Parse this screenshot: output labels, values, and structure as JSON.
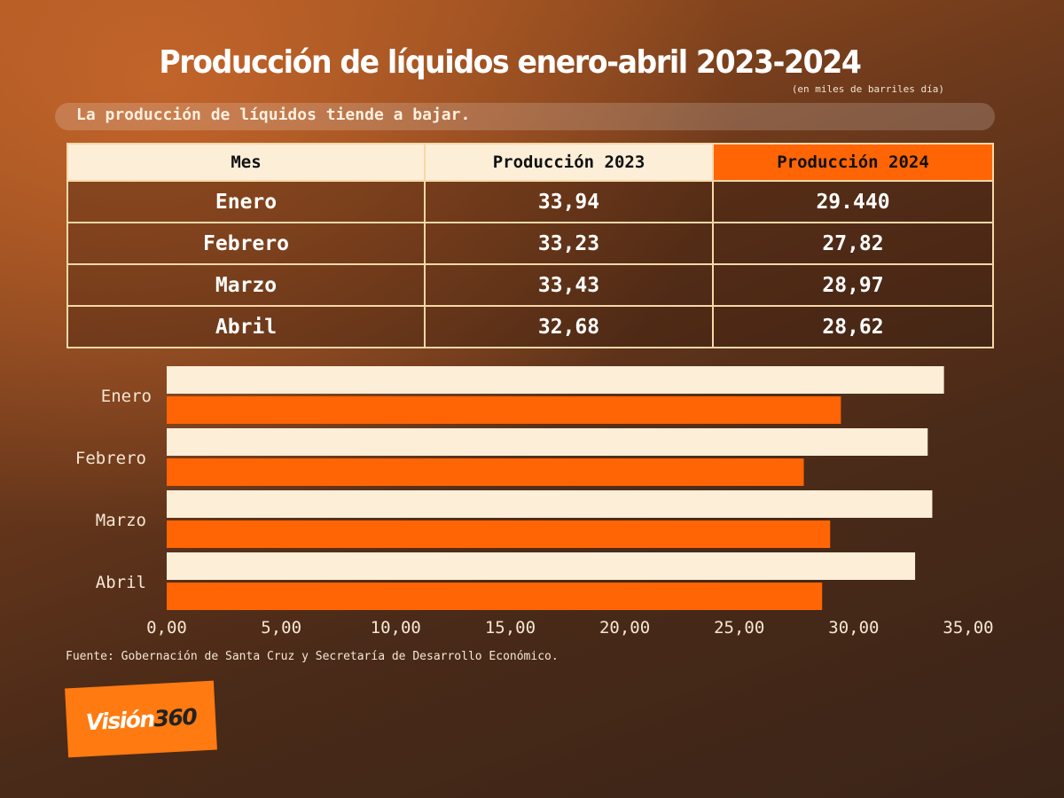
{
  "header": {
    "title": "Producción de líquidos enero-abril 2023-2024",
    "units": "(en miles de barriles día)",
    "subtitle": "La producción de líquidos tiende a bajar."
  },
  "table": {
    "headers": [
      "Mes",
      "Producción 2023",
      "Producción 2024"
    ],
    "rows": [
      [
        "Enero",
        "33,94",
        "29.440"
      ],
      [
        "Febrero",
        "33,23",
        "27,82"
      ],
      [
        "Marzo",
        "33,43",
        "28,97"
      ],
      [
        "Abril",
        "32,68",
        "28,62"
      ]
    ]
  },
  "chart_data": {
    "type": "bar",
    "orientation": "horizontal",
    "categories": [
      "Enero",
      "Febrero",
      "Marzo",
      "Abril"
    ],
    "series": [
      {
        "name": "Producción 2023",
        "values": [
          33.94,
          33.23,
          33.43,
          32.68
        ],
        "color": "#fdeed8"
      },
      {
        "name": "Producción 2024",
        "values": [
          29.44,
          27.82,
          28.97,
          28.62
        ],
        "color": "#ff6505"
      }
    ],
    "xlim": [
      0,
      35
    ],
    "xticks": [
      "0,00",
      "5,00",
      "10,00",
      "15,00",
      "20,00",
      "25,00",
      "30,00",
      "35,00"
    ],
    "grid": false
  },
  "footer": {
    "source": "Fuente: Gobernación de Santa Cruz y Secretaría de Desarrollo Económico.",
    "logo_text_1": "Visión",
    "logo_text_2": "360"
  }
}
